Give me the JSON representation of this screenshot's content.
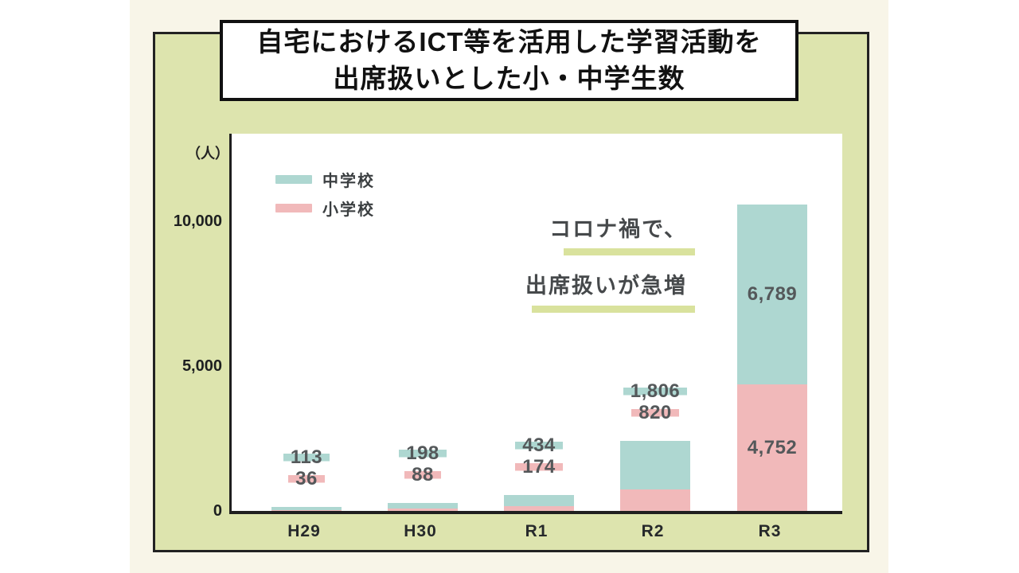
{
  "title": {
    "line1": "自宅におけるICT等を活用した学習活動を",
    "line2": "出席扱いとした小・中学生数"
  },
  "y_unit": "（人）",
  "legend": {
    "items": [
      {
        "label": "中学校"
      },
      {
        "label": "小学校"
      }
    ]
  },
  "annotation": {
    "line1": "コロナ禍で、",
    "line2": "出席扱いが急増"
  },
  "chart_data": {
    "type": "bar",
    "stacked": true,
    "title": "自宅におけるICT等を活用した学習活動を出席扱いとした小・中学生数",
    "categories": [
      "H29",
      "H30",
      "R1",
      "R2",
      "R3"
    ],
    "series": [
      {
        "name": "中学校",
        "color": "#aed7d1",
        "values": [
          113,
          198,
          434,
          1806,
          6789
        ],
        "labels": [
          "113",
          "198",
          "434",
          "1,806",
          "6,789"
        ]
      },
      {
        "name": "小学校",
        "color": "#f1b9ba",
        "values": [
          36,
          88,
          174,
          820,
          4752
        ],
        "labels": [
          "36",
          "88",
          "174",
          "820",
          "4,752"
        ]
      }
    ],
    "ylabel": "（人）",
    "yticks": [
      {
        "value": 0,
        "label": "0"
      },
      {
        "value": 5000,
        "label": "5,000"
      },
      {
        "value": 10000,
        "label": "10,000"
      }
    ],
    "ylim": [
      0,
      13000
    ],
    "legend_position": "top-left",
    "grid": false,
    "annotation_text": "コロナ禍で、出席扱いが急増"
  },
  "colors": {
    "background": "#f8f5e8",
    "panel": "#dde4ae",
    "bar_junior_high": "#aed7d1",
    "bar_elementary": "#f1b9ba",
    "annotation_underline": "#d9e29d",
    "value_text": "#54585a",
    "frame": "#222222"
  }
}
